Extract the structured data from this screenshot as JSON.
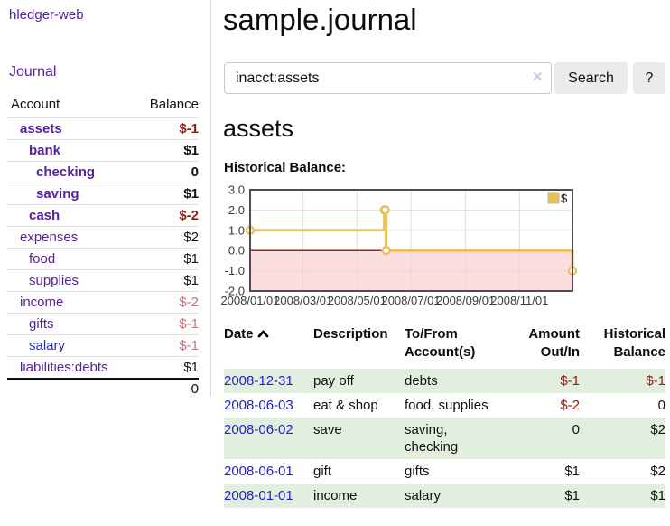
{
  "app": {
    "brand": "hledger-web",
    "nav": {
      "journal_label": "Journal"
    }
  },
  "sidebar": {
    "columns": {
      "account": "Account",
      "balance": "Balance"
    },
    "accounts": [
      {
        "name": "assets",
        "balance": "$-1"
      },
      {
        "name": "bank",
        "balance": "$1"
      },
      {
        "name": "checking",
        "balance": "0"
      },
      {
        "name": "saving",
        "balance": "$1"
      },
      {
        "name": "cash",
        "balance": "$-2"
      },
      {
        "name": "expenses",
        "balance": "$2"
      },
      {
        "name": "food",
        "balance": "$1"
      },
      {
        "name": "supplies",
        "balance": "$1"
      },
      {
        "name": "income",
        "balance": "$-2"
      },
      {
        "name": "gifts",
        "balance": "$-1"
      },
      {
        "name": "salary",
        "balance": "$-1"
      },
      {
        "name": "liabilities:debts",
        "balance": "$1"
      }
    ],
    "total": "0"
  },
  "header": {
    "title": "sample.journal"
  },
  "search": {
    "value": "inacct:assets",
    "clear_icon": "✕",
    "button_label": "Search",
    "help_label": "?"
  },
  "account_page": {
    "heading": "assets",
    "chart_label": "Historical Balance:"
  },
  "chart_data": {
    "type": "line",
    "title": "Historical Balance",
    "legend": "$",
    "legend_position": "top-right",
    "grid": true,
    "x_range": [
      "2008-01-01",
      "2008-12-31"
    ],
    "xtick_labels": [
      "2008/01/01",
      "2008/03/01",
      "2008/05/01",
      "2008/07/01",
      "2008/09/01",
      "2008/11/01"
    ],
    "ytick_labels": [
      "3.0",
      "2.0",
      "1.0",
      "0.0",
      "-1.0",
      "-2.0"
    ],
    "ylim": [
      -2,
      3
    ],
    "series": [
      {
        "name": "$",
        "step": true,
        "points": [
          {
            "date": "2008-01-01",
            "value": 1
          },
          {
            "date": "2008-06-01",
            "value": 2
          },
          {
            "date": "2008-06-02",
            "value": 2
          },
          {
            "date": "2008-06-03",
            "value": 0
          },
          {
            "date": "2008-12-31",
            "value": -1
          }
        ]
      }
    ],
    "colors": {
      "line": "#e9c158",
      "marker_fill": "#ffffff",
      "legend_fill": "#e8c350",
      "negative_region": "#fbdddd",
      "zero_line": "#991111",
      "grid_line": "#dddddd",
      "border": "#4d4d4d"
    }
  },
  "register": {
    "headers": {
      "date": "Date",
      "description": "Description",
      "accounts": "To/From Account(s)",
      "amount": "Amount Out/In",
      "balance": "Historical Balance"
    },
    "rows": [
      {
        "date": "2008-12-31",
        "description": "pay off",
        "accounts": "debts",
        "amount": "$-1",
        "balance": "$-1"
      },
      {
        "date": "2008-06-03",
        "description": "eat & shop",
        "accounts": "food, supplies",
        "amount": "$-2",
        "balance": "0"
      },
      {
        "date": "2008-06-02",
        "description": "save",
        "accounts": "saving, checking",
        "amount": "0",
        "balance": "$2"
      },
      {
        "date": "2008-06-01",
        "description": "gift",
        "accounts": "gifts",
        "amount": "$1",
        "balance": "$2"
      },
      {
        "date": "2008-01-01",
        "description": "income",
        "accounts": "salary",
        "amount": "$1",
        "balance": "$1"
      }
    ]
  }
}
